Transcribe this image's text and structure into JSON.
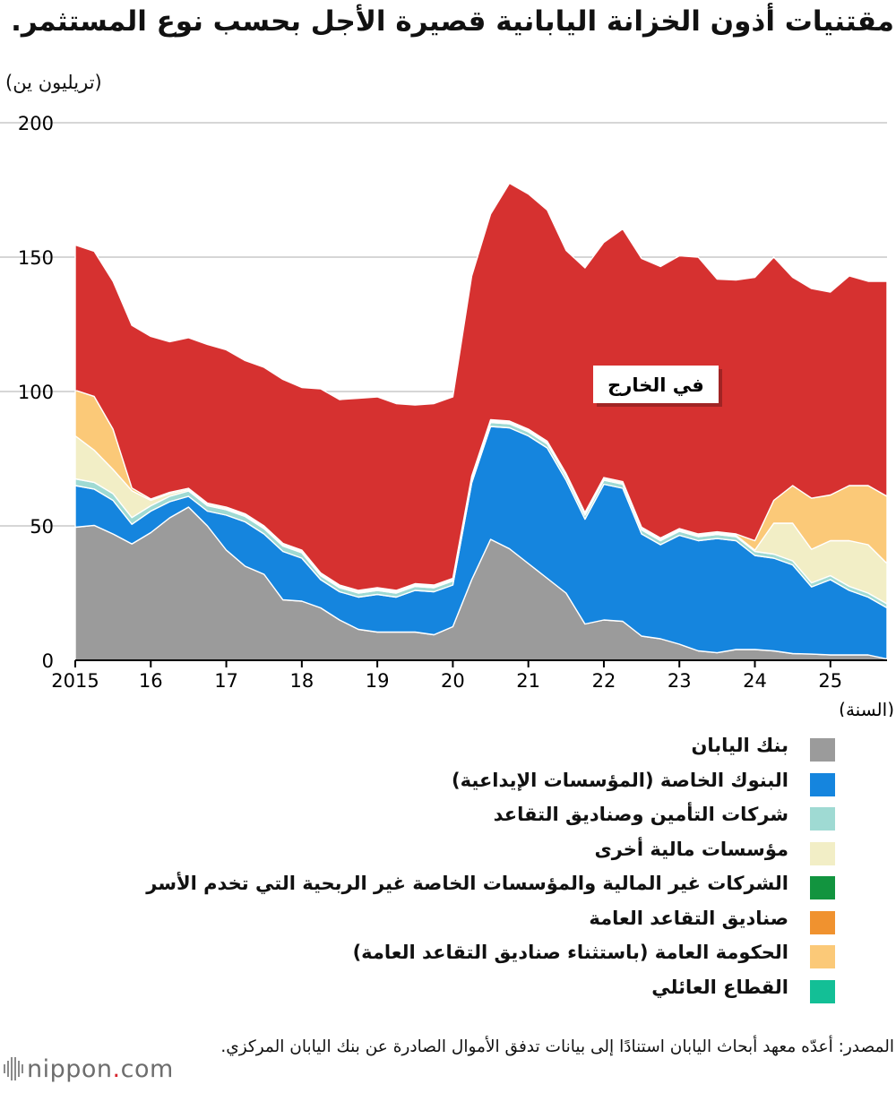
{
  "title": "مقتنيات أذون الخزانة اليابانية قصيرة الأجل بحسب نوع المستثمر.",
  "unit_label": "(تريليون ين)",
  "chart_data": {
    "type": "area",
    "stacked": true,
    "ylim": [
      0,
      200
    ],
    "xlim": [
      2015,
      2025.75
    ],
    "y_ticks": [
      "0",
      "50",
      "100",
      "150",
      "200"
    ],
    "y_tick_values": [
      0,
      50,
      100,
      150,
      200
    ],
    "x_ticks": [
      "2015",
      "16",
      "17",
      "18",
      "19",
      "20",
      "21",
      "22",
      "23",
      "24",
      "25"
    ],
    "x_tick_values": [
      2015,
      2016,
      2017,
      2018,
      2019,
      2020,
      2021,
      2022,
      2023,
      2024,
      2025
    ],
    "xlabel": "(السنة)",
    "ylabel": "(تريليون ين)",
    "annotation": "في الخارج",
    "grid": true,
    "x": [
      2015.0,
      2015.25,
      2015.5,
      2015.75,
      2016.0,
      2016.25,
      2016.5,
      2016.75,
      2017.0,
      2017.25,
      2017.5,
      2017.75,
      2018.0,
      2018.25,
      2018.5,
      2018.75,
      2019.0,
      2019.25,
      2019.5,
      2019.75,
      2020.0,
      2020.25,
      2020.5,
      2020.75,
      2021.0,
      2021.25,
      2021.5,
      2021.75,
      2022.0,
      2022.25,
      2022.5,
      2022.75,
      2023.0,
      2023.25,
      2023.5,
      2023.75,
      2024.0,
      2024.25,
      2024.5,
      2024.75,
      2025.0,
      2025.25,
      2025.5,
      2025.75
    ],
    "series": [
      {
        "name": "بنك اليابان",
        "color": "#9b9b9b",
        "values": [
          49.5,
          50.2,
          47.0,
          43.3,
          47.5,
          53.0,
          57.0,
          50.0,
          41.0,
          35.0,
          32.0,
          22.5,
          22.0,
          19.5,
          15.0,
          11.5,
          10.5,
          10.5,
          10.5,
          9.5,
          12.5,
          30.0,
          45.0,
          41.5,
          36.0,
          30.5,
          25.0,
          13.5,
          15.0,
          14.5,
          9.0,
          8.0,
          6.0,
          3.5,
          2.8,
          4.0,
          4.0,
          3.5,
          2.5,
          2.3,
          2.0,
          2.0,
          2.0,
          0.5
        ]
      },
      {
        "name": "البنوك الخاصة (المؤسسات الإيداعية)",
        "color": "#1585de",
        "values": [
          15.5,
          13.5,
          12.5,
          7.3,
          8.0,
          6.0,
          4.0,
          5.5,
          13.0,
          16.5,
          15.0,
          18.0,
          16.0,
          10.5,
          10.5,
          12.0,
          14.0,
          13.0,
          15.5,
          16.0,
          15.5,
          36.0,
          42.0,
          45.0,
          47.5,
          48.5,
          42.0,
          39.0,
          50.5,
          49.5,
          38.0,
          35.0,
          40.5,
          41.0,
          42.5,
          40.5,
          35.0,
          34.5,
          33.0,
          25.0,
          28.0,
          24.0,
          21.5,
          19.0
        ]
      },
      {
        "name": "شركات التأمين وصناديق التقاعد",
        "color": "#9fdad3",
        "values": [
          2.5,
          2.5,
          2.5,
          2.5,
          2.0,
          2.0,
          2.0,
          2.0,
          2.0,
          2.0,
          2.0,
          2.0,
          2.0,
          1.5,
          1.5,
          1.5,
          1.5,
          1.5,
          1.5,
          1.5,
          1.5,
          1.5,
          1.5,
          1.5,
          1.5,
          1.5,
          1.5,
          1.5,
          1.5,
          1.5,
          1.5,
          1.5,
          1.5,
          1.5,
          1.5,
          1.5,
          1.5,
          1.5,
          1.5,
          1.5,
          1.5,
          1.5,
          1.5,
          1.5
        ]
      },
      {
        "name": "مؤسسات مالية أخرى",
        "color": "#f2eec6",
        "values": [
          16.0,
          12.0,
          9.0,
          10.0,
          2.0,
          1.0,
          0.5,
          0.5,
          0.5,
          0.5,
          0.5,
          0.5,
          0.5,
          0.5,
          0.5,
          0.5,
          0.5,
          0.5,
          0.5,
          0.5,
          0.5,
          0.5,
          0.5,
          0.5,
          0.5,
          0.5,
          0.5,
          0.5,
          0.5,
          0.5,
          0.5,
          0.5,
          0.5,
          0.5,
          0.5,
          0.5,
          0.5,
          11.5,
          14.0,
          12.5,
          13.0,
          17.0,
          18.0,
          15.0
        ]
      },
      {
        "name": "الشركات غير المالية والمؤسسات الخاصة غير الربحية التي تخدم الأسر",
        "color": "#12943f",
        "values": [
          0,
          0,
          0,
          0,
          0,
          0,
          0,
          0,
          0,
          0,
          0,
          0,
          0,
          0,
          0,
          0,
          0,
          0,
          0,
          0,
          0,
          0,
          0,
          0,
          0,
          0,
          0,
          0,
          0,
          0,
          0,
          0,
          0,
          0,
          0,
          0,
          0,
          0,
          0,
          0,
          0,
          0,
          0,
          0
        ]
      },
      {
        "name": "صناديق التقاعد العامة",
        "color": "#f0922f",
        "values": [
          0,
          0,
          0,
          0,
          0,
          0,
          0,
          0,
          0,
          0,
          0,
          0,
          0,
          0,
          0,
          0,
          0,
          0,
          0,
          0,
          0,
          0,
          0,
          0,
          0,
          0,
          0,
          0,
          0,
          0,
          0,
          0,
          0,
          0,
          0,
          0,
          0,
          0,
          0,
          0,
          0,
          0,
          0,
          0
        ]
      },
      {
        "name": "الحكومة العامة (باستثناء صناديق التقاعد العامة)",
        "color": "#fbc978",
        "values": [
          17.0,
          20.0,
          15.0,
          1.0,
          0.5,
          0.5,
          0.5,
          0.5,
          0.5,
          0.5,
          0.5,
          0.5,
          0.5,
          0.5,
          0.5,
          0.5,
          0.5,
          0.5,
          0.5,
          0.5,
          0.5,
          0.5,
          0.5,
          0.5,
          0.5,
          0.5,
          0.5,
          0.5,
          0.5,
          0.5,
          0.5,
          0.5,
          0.5,
          0.5,
          0.5,
          0.5,
          3.5,
          8.5,
          14.0,
          19.0,
          17.0,
          20.5,
          22.0,
          25.0
        ]
      },
      {
        "name": "القطاع العائلي",
        "color": "#13bf96",
        "values": [
          0,
          0,
          0,
          0,
          0,
          0,
          0,
          0,
          0,
          0,
          0,
          0,
          0,
          0,
          0,
          0,
          0,
          0,
          0,
          0,
          0,
          0,
          0,
          0,
          0,
          0,
          0,
          0,
          0,
          0,
          0,
          0,
          0,
          0,
          0,
          0,
          0,
          0,
          0,
          0,
          0,
          0,
          0,
          0
        ]
      },
      {
        "name": "في الخارج",
        "color": "#d63130",
        "values": [
          54.0,
          54.0,
          55.0,
          60.5,
          60.5,
          56.0,
          56.0,
          59.0,
          58.5,
          57.0,
          59.0,
          61.0,
          60.5,
          68.5,
          69.0,
          71.5,
          71.0,
          69.5,
          66.5,
          67.5,
          67.5,
          74.5,
          76.5,
          88.5,
          87.5,
          86.0,
          83.0,
          91.0,
          87.5,
          94.0,
          100.0,
          101.0,
          101.5,
          103.0,
          94.0,
          94.5,
          98.0,
          90.5,
          77.5,
          78.0,
          75.5,
          78.0,
          76.0,
          80.0
        ]
      }
    ]
  },
  "legend_items": [
    {
      "label": "بنك اليابان",
      "color": "#9b9b9b"
    },
    {
      "label": "البنوك الخاصة (المؤسسات الإيداعية)",
      "color": "#1585de"
    },
    {
      "label": "شركات التأمين وصناديق التقاعد",
      "color": "#9fdad3"
    },
    {
      "label": "مؤسسات مالية أخرى",
      "color": "#f2eec6"
    },
    {
      "label": "الشركات غير المالية والمؤسسات الخاصة غير الربحية التي تخدم الأسر",
      "color": "#12943f"
    },
    {
      "label": "صناديق التقاعد العامة",
      "color": "#f0922f"
    },
    {
      "label": "الحكومة العامة (باستثناء صناديق التقاعد العامة)",
      "color": "#fbc978"
    },
    {
      "label": "القطاع العائلي",
      "color": "#13bf96"
    }
  ],
  "source": "المصدر: أعدّه معهد أبحاث اليابان استنادًا إلى بيانات تدفق الأموال الصادرة عن بنك اليابان المركزي.",
  "logo": {
    "prefix": "nippon",
    "dot": ".",
    "suffix": "com",
    "accent": "#d7262f"
  }
}
